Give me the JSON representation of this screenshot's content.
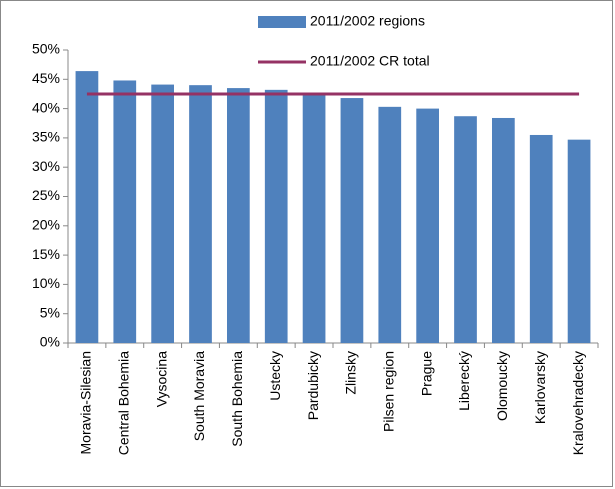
{
  "chart_data": {
    "type": "bar",
    "categories": [
      "Moravia-Silesian",
      "Central Bohemia",
      "Vysocina",
      "South Moravia",
      "South Bohemia",
      "Ustecky",
      "Pardubicky",
      "Zlinsky",
      "Pilsen region",
      "Prague",
      "Liberecký",
      "Olomoucky",
      "Karlovarsky",
      "Kralovehradecky"
    ],
    "series": [
      {
        "name": "2011/2002 regions",
        "type": "bar",
        "color": "#4f81bd",
        "values": [
          46.4,
          44.8,
          44.1,
          44.0,
          43.5,
          43.2,
          42.7,
          41.8,
          40.3,
          40.0,
          38.7,
          38.4,
          35.5,
          34.7
        ]
      },
      {
        "name": "2011/2002 CR total",
        "type": "line",
        "color": "#953264",
        "values": [
          42.5,
          42.5,
          42.5,
          42.5,
          42.5,
          42.5,
          42.5,
          42.5,
          42.5,
          42.5,
          42.5,
          42.5,
          42.5,
          42.5
        ]
      }
    ],
    "ylim": [
      0,
      50
    ],
    "yticks": [
      {
        "value": 0,
        "label": "0%"
      },
      {
        "value": 5,
        "label": "5%"
      },
      {
        "value": 10,
        "label": "10%"
      },
      {
        "value": 15,
        "label": "15%"
      },
      {
        "value": 20,
        "label": "20%"
      },
      {
        "value": 25,
        "label": "25%"
      },
      {
        "value": 30,
        "label": "30%"
      },
      {
        "value": 35,
        "label": "35%"
      },
      {
        "value": 40,
        "label": "40%"
      },
      {
        "value": 45,
        "label": "45%"
      },
      {
        "value": 50,
        "label": "50%"
      }
    ],
    "grid": false
  }
}
